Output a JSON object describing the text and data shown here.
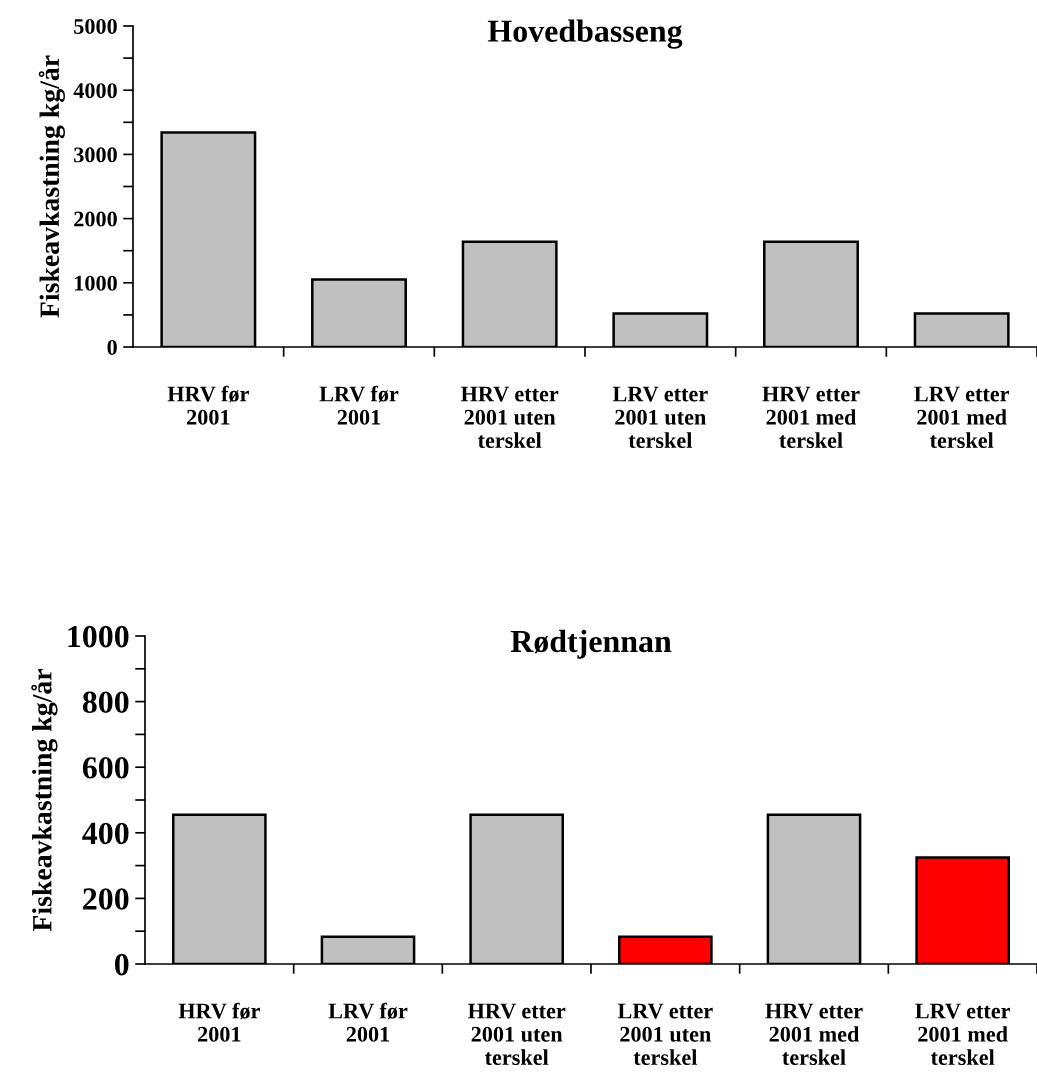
{
  "chart_data": [
    {
      "type": "bar",
      "title": "Hovedbasseng",
      "ylabel": "Fiskeavkastning kg/år",
      "categories": [
        "HRV før 2001",
        "LRV før 2001",
        "HRV etter 2001 uten terskel",
        "LRV etter 2001 uten terskel",
        "HRV etter 2001 med terskel",
        "LRV etter 2001 med terskel"
      ],
      "values": [
        3340,
        1050,
        1640,
        520,
        1640,
        520
      ],
      "colors": [
        "#c0c0c0",
        "#c0c0c0",
        "#c0c0c0",
        "#c0c0c0",
        "#c0c0c0",
        "#c0c0c0"
      ],
      "ylim": [
        0,
        5000
      ],
      "yticks": [
        0,
        {
          "value": 500,
          "label": null
        },
        1000,
        {
          "value": 1500,
          "label": null
        },
        2000,
        {
          "value": 2500,
          "label": null
        },
        3000,
        {
          "value": 3500,
          "label": null
        },
        4000,
        {
          "value": 4500,
          "label": null
        },
        5000
      ],
      "grid": false,
      "legend": false
    },
    {
      "type": "bar",
      "title": "Rødtjennan",
      "ylabel": "Fiskeavkastning kg/år",
      "categories": [
        "HRV før 2001",
        "LRV før 2001",
        "HRV etter 2001 uten terskel",
        "LRV etter 2001 uten terskel",
        "HRV etter 2001 med terskel",
        "LRV etter 2001 med terskel"
      ],
      "values": [
        455,
        83,
        455,
        83,
        455,
        325
      ],
      "colors": [
        "#c0c0c0",
        "#c0c0c0",
        "#c0c0c0",
        "#ff0000",
        "#c0c0c0",
        "#ff0000"
      ],
      "ylim": [
        0,
        1000
      ],
      "yticks": [
        0,
        {
          "value": 100,
          "label": null
        },
        200,
        {
          "value": 300,
          "label": null
        },
        400,
        {
          "value": 500,
          "label": null
        },
        600,
        {
          "value": 700,
          "label": null
        },
        800,
        {
          "value": 900,
          "label": null
        },
        1000
      ],
      "grid": false,
      "legend": false
    }
  ]
}
